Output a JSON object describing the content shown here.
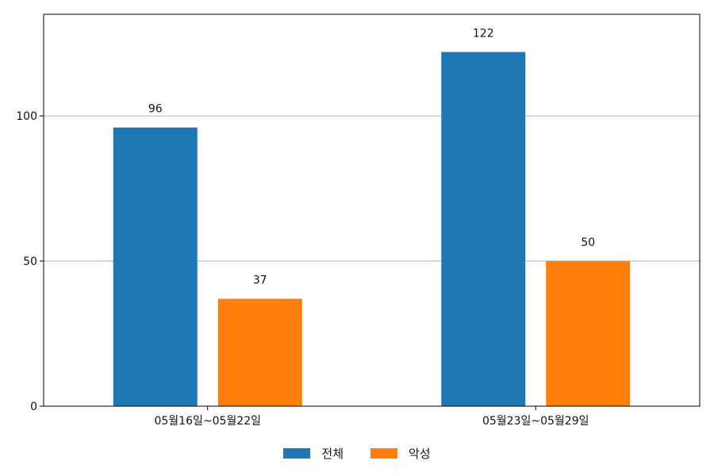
{
  "chart_data": {
    "type": "bar",
    "categories": [
      "05월16일~05월22일",
      "05월23일~05월29일"
    ],
    "series": [
      {
        "name": "전체",
        "values": [
          96,
          122
        ],
        "color": "#1f77b4"
      },
      {
        "name": "악성",
        "values": [
          37,
          50
        ],
        "color": "#ff7f0e"
      }
    ],
    "ylim": [
      0,
      135
    ],
    "yticks": [
      0,
      50,
      100
    ],
    "grid": "horizontal",
    "legend_position": "bottom-center",
    "title": "",
    "xlabel": "",
    "ylabel": ""
  }
}
